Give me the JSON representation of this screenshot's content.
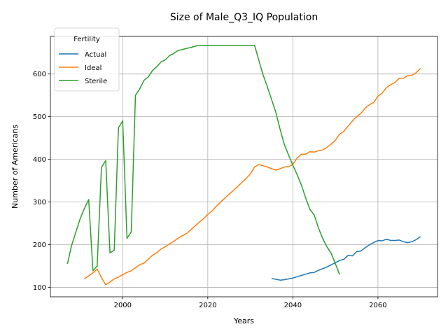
{
  "chart_data": {
    "type": "line",
    "title": "Size of Male_Q3_IQ Population",
    "xlabel": "Years",
    "ylabel": "Number of Americans",
    "xlim": [
      1983,
      2074
    ],
    "ylim": [
      78,
      688
    ],
    "xticks": [
      2000,
      2020,
      2040,
      2060
    ],
    "yticks": [
      100,
      200,
      300,
      400,
      500,
      600
    ],
    "grid": true,
    "legend": {
      "title": "Fertility",
      "placement": "top-left"
    },
    "series": [
      {
        "name": "Actual",
        "color": "#1f77b4",
        "x": [
          2035,
          2036,
          2037,
          2038,
          2039,
          2040,
          2041,
          2042,
          2043,
          2044,
          2045,
          2046,
          2047,
          2048,
          2049,
          2050,
          2051,
          2052,
          2053,
          2054,
          2055,
          2056,
          2057,
          2058,
          2059,
          2060,
          2061,
          2062,
          2063,
          2064,
          2065,
          2066,
          2067,
          2068,
          2069,
          2070
        ],
        "y": [
          121,
          119,
          117,
          118,
          120,
          122,
          125,
          128,
          131,
          134,
          135,
          140,
          144,
          148,
          153,
          158,
          163,
          166,
          175,
          174,
          184,
          185,
          193,
          200,
          205,
          210,
          209,
          213,
          210,
          210,
          211,
          207,
          205,
          207,
          212,
          219
        ]
      },
      {
        "name": "Ideal",
        "color": "#ff7f0e",
        "x": [
          1991,
          1992,
          1993,
          1994,
          1995,
          1996,
          1997,
          1998,
          1999,
          2000,
          2001,
          2002,
          2003,
          2004,
          2005,
          2006,
          2007,
          2008,
          2009,
          2010,
          2011,
          2012,
          2013,
          2014,
          2015,
          2016,
          2017,
          2018,
          2019,
          2020,
          2021,
          2022,
          2023,
          2024,
          2025,
          2026,
          2027,
          2028,
          2029,
          2030,
          2031,
          2032,
          2033,
          2034,
          2035,
          2036,
          2037,
          2038,
          2039,
          2040,
          2041,
          2042,
          2043,
          2044,
          2045,
          2046,
          2047,
          2048,
          2049,
          2050,
          2051,
          2052,
          2053,
          2054,
          2055,
          2056,
          2057,
          2058,
          2059,
          2060,
          2061,
          2062,
          2063,
          2064,
          2065,
          2066,
          2067,
          2068,
          2069,
          2070
        ],
        "y": [
          120,
          127,
          134,
          143,
          123,
          106,
          113,
          120,
          124,
          130,
          135,
          139,
          146,
          153,
          157,
          166,
          175,
          181,
          190,
          195,
          202,
          208,
          215,
          221,
          226,
          235,
          244,
          253,
          261,
          271,
          279,
          290,
          300,
          309,
          318,
          327,
          336,
          346,
          355,
          366,
          382,
          388,
          385,
          382,
          378,
          375,
          378,
          382,
          383,
          388,
          403,
          412,
          412,
          418,
          417,
          420,
          422,
          428,
          436,
          445,
          459,
          466,
          478,
          490,
          500,
          508,
          520,
          528,
          533,
          548,
          555,
          568,
          575,
          580,
          590,
          590,
          596,
          597,
          603,
          613
        ]
      },
      {
        "name": "Sterile",
        "color": "#2ca02c",
        "x": [
          1987,
          1988,
          1989,
          1990,
          1991,
          1992,
          1993,
          1994,
          1995,
          1996,
          1997,
          1998,
          1999,
          2000,
          2001,
          2002,
          2003,
          2004,
          2005,
          2006,
          2007,
          2008,
          2009,
          2010,
          2011,
          2012,
          2013,
          2014,
          2015,
          2016,
          2017,
          2018,
          2019,
          2020,
          2021,
          2022,
          2023,
          2024,
          2025,
          2026,
          2027,
          2028,
          2029,
          2030,
          2031,
          2032,
          2033,
          2034,
          2035,
          2036,
          2037,
          2038,
          2039,
          2040,
          2041,
          2042,
          2043,
          2044,
          2045,
          2046,
          2047,
          2048,
          2049,
          2050,
          2051
        ],
        "y": [
          155,
          199,
          230,
          261,
          285,
          306,
          139,
          150,
          381,
          397,
          181,
          187,
          474,
          490,
          215,
          230,
          550,
          565,
          585,
          593,
          608,
          617,
          628,
          633,
          643,
          648,
          655,
          657,
          660,
          662,
          665,
          667,
          667,
          667,
          667,
          667,
          667,
          667,
          667,
          667,
          667,
          667,
          667,
          667,
          667,
          632,
          598,
          570,
          540,
          510,
          470,
          435,
          410,
          386,
          364,
          340,
          310,
          283,
          270,
          240,
          215,
          195,
          180,
          155,
          130
        ]
      }
    ]
  }
}
